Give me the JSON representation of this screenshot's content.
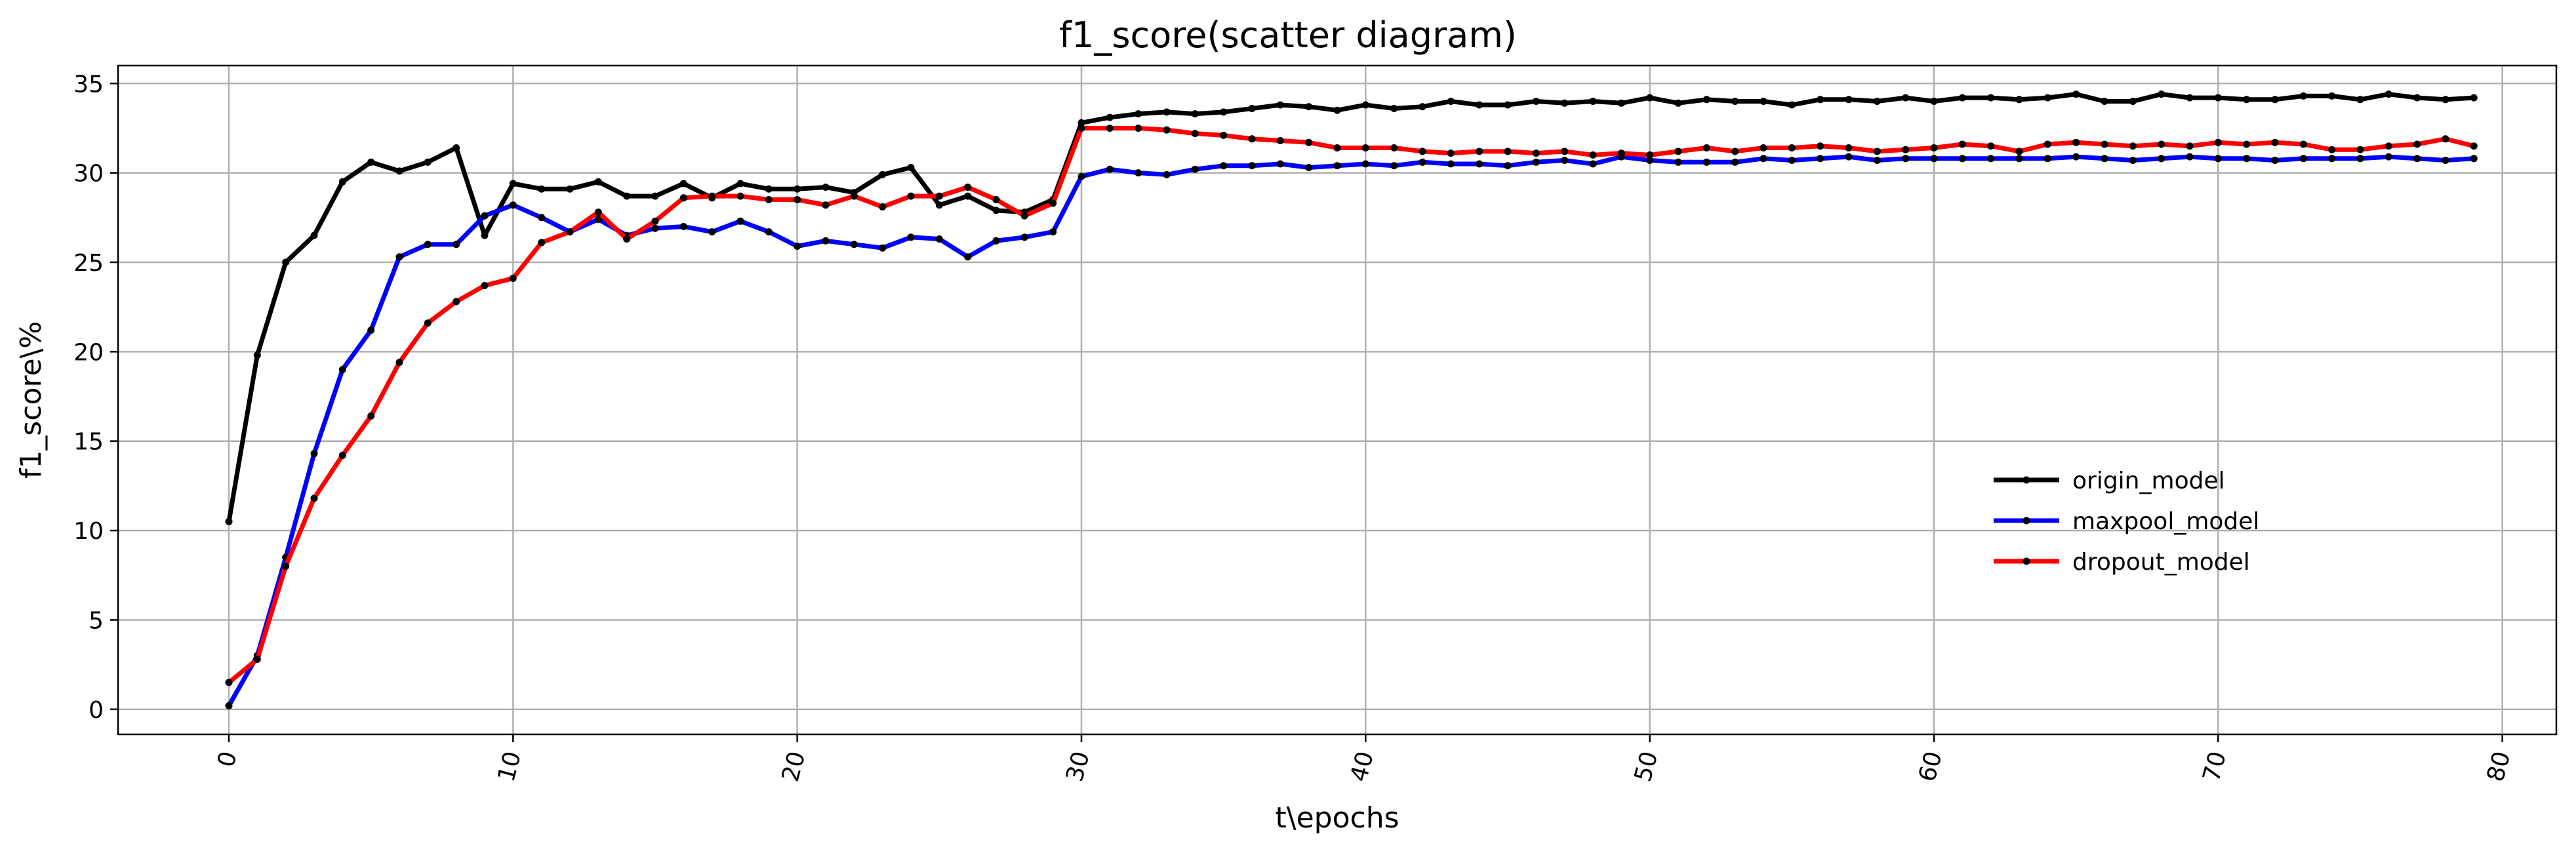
{
  "chart_data": {
    "type": "line",
    "title": "f1_score(scatter diagram)",
    "xlabel": "t\\epochs",
    "ylabel": "f1_score\\%",
    "xlim": [
      -3.9,
      81.9
    ],
    "ylim": [
      -1.4,
      36.0
    ],
    "xticks": [
      0,
      10,
      20,
      30,
      40,
      50,
      60,
      70,
      80
    ],
    "yticks": [
      0,
      5,
      10,
      15,
      20,
      25,
      30,
      35
    ],
    "xtick_rotation": -75,
    "grid": true,
    "legend_position": "center-right",
    "marker": "point",
    "marker_color": "#000000",
    "series": [
      {
        "name": "origin_model",
        "color": "#000000",
        "x": [
          0,
          1,
          2,
          3,
          4,
          5,
          6,
          7,
          8,
          9,
          10,
          11,
          12,
          13,
          14,
          15,
          16,
          17,
          18,
          19,
          20,
          21,
          22,
          23,
          24,
          25,
          26,
          27,
          28,
          29,
          30,
          31,
          32,
          33,
          34,
          35,
          36,
          37,
          38,
          39,
          40,
          41,
          42,
          43,
          44,
          45,
          46,
          47,
          48,
          49,
          50,
          51,
          52,
          53,
          54,
          55,
          56,
          57,
          58,
          59,
          60,
          61,
          62,
          63,
          64,
          65,
          66,
          67,
          68,
          69,
          70,
          71,
          72,
          73,
          74,
          75,
          76,
          77,
          78,
          79
        ],
        "values": [
          10.5,
          19.8,
          25.0,
          26.5,
          29.5,
          30.6,
          30.1,
          30.6,
          31.4,
          26.5,
          29.4,
          29.1,
          29.1,
          29.5,
          28.7,
          28.7,
          29.4,
          28.6,
          29.4,
          29.1,
          29.1,
          29.2,
          28.9,
          29.9,
          30.3,
          28.2,
          28.7,
          27.9,
          27.8,
          28.5,
          32.8,
          33.1,
          33.3,
          33.4,
          33.3,
          33.4,
          33.6,
          33.8,
          33.7,
          33.5,
          33.8,
          33.6,
          33.7,
          34.0,
          33.8,
          33.8,
          34.0,
          33.9,
          34.0,
          33.9,
          34.2,
          33.9,
          34.1,
          34.0,
          34.0,
          33.8,
          34.1,
          34.1,
          34.0,
          34.2,
          34.0,
          34.2,
          34.2,
          34.1,
          34.2,
          34.4,
          34.0,
          34.0,
          34.4,
          34.2,
          34.2,
          34.1,
          34.1,
          34.3,
          34.3,
          34.1,
          34.4,
          34.2,
          34.1,
          34.2
        ]
      },
      {
        "name": "maxpool_model",
        "color": "#0000ff",
        "x": [
          0,
          1,
          2,
          3,
          4,
          5,
          6,
          7,
          8,
          9,
          10,
          11,
          12,
          13,
          14,
          15,
          16,
          17,
          18,
          19,
          20,
          21,
          22,
          23,
          24,
          25,
          26,
          27,
          28,
          29,
          30,
          31,
          32,
          33,
          34,
          35,
          36,
          37,
          38,
          39,
          40,
          41,
          42,
          43,
          44,
          45,
          46,
          47,
          48,
          49,
          50,
          51,
          52,
          53,
          54,
          55,
          56,
          57,
          58,
          59,
          60,
          61,
          62,
          63,
          64,
          65,
          66,
          67,
          68,
          69,
          70,
          71,
          72,
          73,
          74,
          75,
          76,
          77,
          78,
          79
        ],
        "values": [
          0.2,
          3.0,
          8.5,
          14.3,
          19.0,
          21.2,
          25.3,
          26.0,
          26.0,
          27.6,
          28.2,
          27.5,
          26.7,
          27.4,
          26.5,
          26.9,
          27.0,
          26.7,
          27.3,
          26.7,
          25.9,
          26.2,
          26.0,
          25.8,
          26.4,
          26.3,
          25.3,
          26.2,
          26.4,
          26.7,
          29.8,
          30.2,
          30.0,
          29.9,
          30.2,
          30.4,
          30.4,
          30.5,
          30.3,
          30.4,
          30.5,
          30.4,
          30.6,
          30.5,
          30.5,
          30.4,
          30.6,
          30.7,
          30.5,
          30.9,
          30.7,
          30.6,
          30.6,
          30.6,
          30.8,
          30.7,
          30.8,
          30.9,
          30.7,
          30.8,
          30.8,
          30.8,
          30.8,
          30.8,
          30.8,
          30.9,
          30.8,
          30.7,
          30.8,
          30.9,
          30.8,
          30.8,
          30.7,
          30.8,
          30.8,
          30.8,
          30.9,
          30.8,
          30.7,
          30.8
        ]
      },
      {
        "name": "dropout_model",
        "color": "#ff0000",
        "x": [
          0,
          1,
          2,
          3,
          4,
          5,
          6,
          7,
          8,
          9,
          10,
          11,
          12,
          13,
          14,
          15,
          16,
          17,
          18,
          19,
          20,
          21,
          22,
          23,
          24,
          25,
          26,
          27,
          28,
          29,
          30,
          31,
          32,
          33,
          34,
          35,
          36,
          37,
          38,
          39,
          40,
          41,
          42,
          43,
          44,
          45,
          46,
          47,
          48,
          49,
          50,
          51,
          52,
          53,
          54,
          55,
          56,
          57,
          58,
          59,
          60,
          61,
          62,
          63,
          64,
          65,
          66,
          67,
          68,
          69,
          70,
          71,
          72,
          73,
          74,
          75,
          76,
          77,
          78,
          79
        ],
        "values": [
          1.5,
          2.8,
          8.0,
          11.8,
          14.2,
          16.4,
          19.4,
          21.6,
          22.8,
          23.7,
          24.1,
          26.1,
          26.7,
          27.8,
          26.3,
          27.3,
          28.6,
          28.7,
          28.7,
          28.5,
          28.5,
          28.2,
          28.7,
          28.1,
          28.7,
          28.7,
          29.2,
          28.5,
          27.6,
          28.3,
          32.5,
          32.5,
          32.5,
          32.4,
          32.2,
          32.1,
          31.9,
          31.8,
          31.7,
          31.4,
          31.4,
          31.4,
          31.2,
          31.1,
          31.2,
          31.2,
          31.1,
          31.2,
          31.0,
          31.1,
          31.0,
          31.2,
          31.4,
          31.2,
          31.4,
          31.4,
          31.5,
          31.4,
          31.2,
          31.3,
          31.4,
          31.6,
          31.5,
          31.2,
          31.6,
          31.7,
          31.6,
          31.5,
          31.6,
          31.5,
          31.7,
          31.6,
          31.7,
          31.6,
          31.3,
          31.3,
          31.5,
          31.6,
          31.9,
          31.5
        ]
      }
    ]
  }
}
